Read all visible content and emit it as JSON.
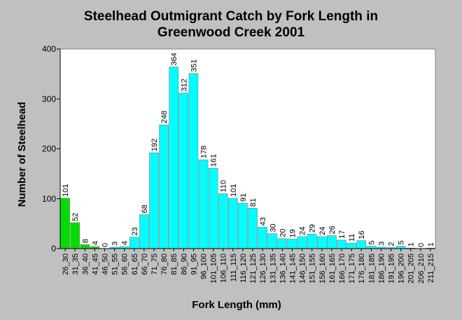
{
  "chart_data": {
    "type": "bar",
    "title_line1": "Steelhead Outmigrant Catch by Fork Length in",
    "title_line2": "Greenwood Creek 2001",
    "xlabel": "Fork Length (mm)",
    "ylabel": "Number of Steelhead",
    "ylim": [
      0,
      400
    ],
    "yticks": [
      "0",
      "100",
      "200",
      "300",
      "400"
    ],
    "grid": false,
    "legend": "none",
    "colors": {
      "small": "#00dd00",
      "large": "#00ffff",
      "plot_bg": "#ffffff",
      "page_bg": "#c0c0c0"
    },
    "categories": [
      "26_30",
      "31_35",
      "36_40",
      "41_45",
      "46_50",
      "51_55",
      "56_60",
      "61_65",
      "66_70",
      "71_75",
      "76_80",
      "81_85",
      "86_90",
      "91_95",
      "96_100",
      "101_105",
      "106_110",
      "111_115",
      "116_120",
      "121_125",
      "126_130",
      "131_135",
      "136_140",
      "141_145",
      "146_150",
      "151_155",
      "156_160",
      "161_165",
      "166_170",
      "171_175",
      "176_180",
      "181_185",
      "186_190",
      "191_195",
      "196_200",
      "201_205",
      "206_210",
      "211_215"
    ],
    "values": [
      101,
      52,
      8,
      4,
      0,
      3,
      4,
      23,
      68,
      192,
      248,
      364,
      312,
      351,
      178,
      161,
      110,
      101,
      91,
      81,
      43,
      30,
      20,
      19,
      24,
      29,
      24,
      26,
      17,
      11,
      16,
      5,
      3,
      2,
      5,
      1,
      0,
      1
    ],
    "green_count": 4
  }
}
